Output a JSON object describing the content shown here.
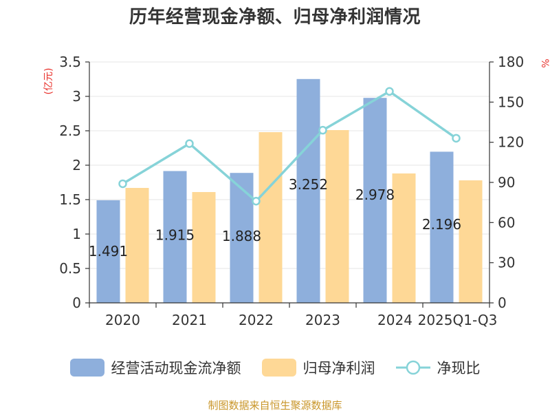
{
  "chart_data": {
    "type": "bar",
    "title": "历年经营现金净额、归母净利润情况",
    "categories": [
      "2020",
      "2021",
      "2022",
      "2023",
      "2024",
      "2025Q1-Q3"
    ],
    "y_left": {
      "unit": "(亿元)",
      "ylim": [
        0,
        3.5
      ],
      "ticks": [
        "0",
        "0.5",
        "1",
        "1.5",
        "2",
        "2.5",
        "3",
        "3.5"
      ]
    },
    "y_right": {
      "unit": "%",
      "ylim": [
        0,
        180
      ],
      "ticks": [
        "0",
        "30",
        "60",
        "90",
        "120",
        "150",
        "180"
      ]
    },
    "series": [
      {
        "name": "经营活动现金流净额",
        "type": "bar",
        "color": "#8eafdc",
        "values": [
          1.491,
          1.915,
          1.888,
          3.252,
          2.978,
          2.196
        ],
        "labels": [
          "1.491",
          "1.915",
          "1.888",
          "3.252",
          "2.978",
          "2.196"
        ]
      },
      {
        "name": "归母净利润",
        "type": "bar",
        "color": "#fed896",
        "values": [
          1.67,
          1.61,
          2.48,
          2.51,
          1.88,
          1.78
        ]
      },
      {
        "name": "净现比",
        "type": "line",
        "color": "#86d3d8",
        "axis": "right",
        "values": [
          89,
          119,
          76,
          129,
          158,
          123
        ]
      }
    ],
    "grid": true,
    "legend_position": "bottom"
  },
  "source": "制图数据来自恒生聚源数据库"
}
